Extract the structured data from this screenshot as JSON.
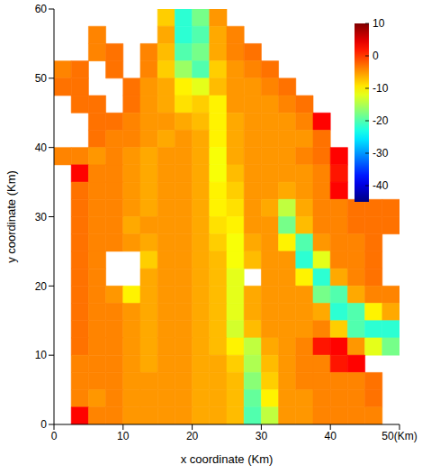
{
  "chart_data": {
    "type": "heatmap",
    "xlabel": "x coordinate (Km)",
    "ylabel": "y coordinate (Km)",
    "xlim": [
      0,
      50
    ],
    "ylim": [
      0,
      60
    ],
    "xticks": [
      0,
      10,
      20,
      30,
      40,
      {
        "value": 50,
        "label": "50(Km)"
      }
    ],
    "yticks": [
      0,
      10,
      20,
      30,
      40,
      50,
      60
    ],
    "colorbar": {
      "range": [
        -45,
        10
      ],
      "ticks": [
        10,
        0,
        -10,
        -20,
        -30,
        -40
      ]
    },
    "heatmap": {
      "x_edges": [
        0,
        2.5,
        5,
        7.5,
        10,
        12.5,
        15,
        17.5,
        20,
        22.5,
        25,
        27.5,
        30,
        32.5,
        35,
        37.5,
        40,
        42.5,
        45,
        47.5,
        50
      ],
      "y_edges": [
        60,
        57.5,
        55,
        52.5,
        50,
        47.5,
        45,
        42.5,
        40,
        37.5,
        35,
        32.5,
        30,
        27.5,
        25,
        22.5,
        20,
        17.5,
        15,
        12.5,
        10,
        7.5,
        5,
        2.5,
        0
      ],
      "values": [
        [
          null,
          null,
          null,
          null,
          null,
          null,
          -8,
          -22,
          -18,
          -5,
          null,
          null,
          null,
          null,
          null,
          null,
          null,
          null,
          null,
          null
        ],
        [
          null,
          null,
          -4,
          null,
          null,
          null,
          -6,
          -22,
          -20,
          -6,
          -4,
          null,
          null,
          null,
          null,
          null,
          null,
          null,
          null,
          null
        ],
        [
          null,
          null,
          -4,
          -3,
          null,
          -4,
          -7,
          -20,
          -18,
          -6,
          -4,
          -3,
          null,
          null,
          null,
          null,
          null,
          null,
          null,
          null
        ],
        [
          -4,
          -3,
          null,
          -3,
          null,
          -4,
          -8,
          -16,
          -20,
          -8,
          -5,
          -4,
          -3,
          null,
          null,
          null,
          null,
          null,
          null,
          null
        ],
        [
          -3,
          -3,
          null,
          null,
          -3,
          -5,
          -6,
          -10,
          -12,
          -7,
          -5,
          -5,
          -4,
          -3,
          null,
          null,
          null,
          null,
          null,
          null
        ],
        [
          null,
          -3,
          -3,
          null,
          -3,
          -5,
          -6,
          -9,
          -8,
          -10,
          -5,
          -5,
          -5,
          -4,
          -3,
          null,
          null,
          null,
          null,
          null
        ],
        [
          null,
          null,
          -3,
          -3,
          -4,
          -5,
          -5,
          -6,
          -7,
          -10,
          -6,
          -5,
          -5,
          -5,
          -4,
          3,
          null,
          null,
          null,
          null
        ],
        [
          null,
          null,
          -3,
          -4,
          -4,
          -5,
          -6,
          -5,
          -6,
          -10,
          -6,
          -5,
          -5,
          -5,
          -5,
          -3,
          null,
          null,
          null,
          null
        ],
        [
          -4,
          -4,
          -5,
          -4,
          -5,
          -6,
          -5,
          -5,
          -6,
          -11,
          -6,
          -5,
          -5,
          -5,
          -4,
          -3,
          3,
          null,
          null,
          null
        ],
        [
          null,
          3,
          -4,
          -4,
          -5,
          -6,
          -5,
          -5,
          -6,
          -11,
          -7,
          -5,
          -5,
          -5,
          -5,
          -4,
          2,
          null,
          null,
          null
        ],
        [
          null,
          -3,
          -4,
          -4,
          -5,
          -6,
          -5,
          -5,
          -6,
          -10,
          -8,
          -5,
          -5,
          -6,
          -5,
          -4,
          3,
          null,
          null,
          null
        ],
        [
          null,
          -3,
          -4,
          -4,
          -5,
          -6,
          -5,
          -5,
          -6,
          -10,
          -9,
          -5,
          -6,
          -14,
          -6,
          -4,
          -4,
          -3,
          -3,
          -3
        ],
        [
          null,
          -3,
          -4,
          -4,
          -6,
          -5,
          -5,
          -5,
          -6,
          -9,
          -10,
          -5,
          -5,
          -18,
          -7,
          -4,
          -4,
          -3,
          -3,
          -3
        ],
        [
          null,
          -3,
          -4,
          -4,
          -5,
          -6,
          -5,
          -5,
          -6,
          -8,
          -11,
          -6,
          -5,
          -10,
          -20,
          -5,
          -4,
          -4,
          -3,
          null
        ],
        [
          null,
          -3,
          -4,
          null,
          null,
          -8,
          -5,
          -5,
          -6,
          -7,
          -11,
          -7,
          -5,
          -5,
          -22,
          -12,
          -4,
          -4,
          -3,
          null
        ],
        [
          null,
          -3,
          -4,
          null,
          null,
          -6,
          -5,
          -5,
          -6,
          -7,
          -12,
          null,
          -5,
          -5,
          -10,
          -22,
          -6,
          -4,
          -3,
          null
        ],
        [
          null,
          -3,
          -4,
          -5,
          -10,
          -6,
          -5,
          -5,
          -6,
          -7,
          -12,
          -6,
          -5,
          -5,
          -5,
          -18,
          -20,
          -6,
          -4,
          -4
        ],
        [
          null,
          -3,
          -4,
          -4,
          -5,
          -6,
          -5,
          -5,
          -6,
          -7,
          -12,
          -6,
          -5,
          -5,
          -5,
          -6,
          -22,
          -20,
          -10,
          -6
        ],
        [
          null,
          -3,
          -4,
          -4,
          -5,
          -6,
          -5,
          -5,
          -6,
          -7,
          -13,
          -7,
          -5,
          -5,
          -5,
          -4,
          -8,
          -20,
          -22,
          -22
        ],
        [
          null,
          -3,
          -4,
          -4,
          -5,
          -6,
          -5,
          -5,
          -6,
          -7,
          -10,
          -14,
          -6,
          -5,
          -4,
          2,
          3,
          -5,
          -12,
          -18
        ],
        [
          null,
          -4,
          -4,
          -4,
          -5,
          -6,
          -5,
          -5,
          -6,
          -6,
          -8,
          -15,
          -7,
          -5,
          -4,
          -4,
          2,
          3,
          null,
          null
        ],
        [
          null,
          -4,
          -4,
          -4,
          -5,
          -5,
          -5,
          -5,
          -6,
          -6,
          -7,
          -17,
          -8,
          -5,
          -4,
          -4,
          -4,
          -4,
          -3,
          null
        ],
        [
          null,
          -4,
          -5,
          -4,
          -5,
          -5,
          -5,
          -5,
          -6,
          -6,
          -7,
          -19,
          -10,
          -5,
          -5,
          -4,
          -4,
          -4,
          -3,
          null
        ],
        [
          null,
          3,
          -4,
          -4,
          -5,
          -5,
          -5,
          -5,
          -6,
          -6,
          -7,
          -20,
          -14,
          -5,
          -5,
          -4,
          -4,
          -4,
          -4,
          null
        ]
      ]
    }
  }
}
